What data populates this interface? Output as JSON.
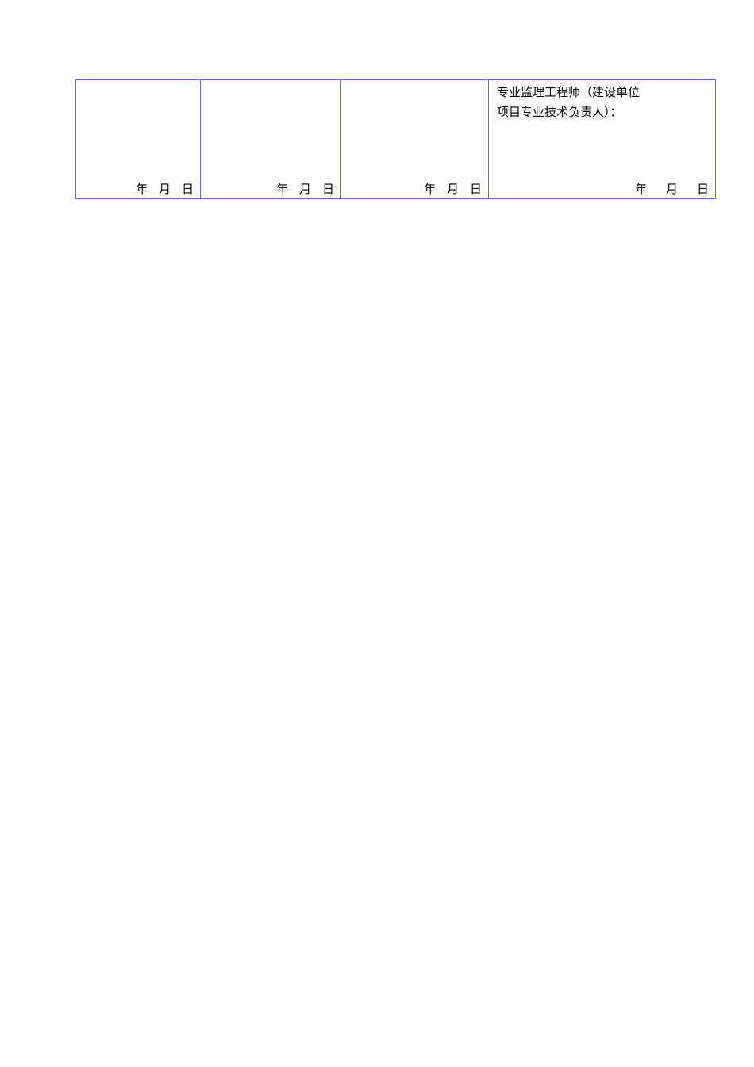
{
  "table": {
    "cells": [
      {
        "label": "",
        "date": {
          "year": "年",
          "month": "月",
          "day": "日"
        }
      },
      {
        "label": "",
        "date": {
          "year": "年",
          "month": "月",
          "day": "日"
        }
      },
      {
        "label": "",
        "date": {
          "year": "年",
          "month": "月",
          "day": "日"
        }
      },
      {
        "label_line1": "专业监理工程师（建设单位",
        "label_line2": "项目专业技术负责人）：",
        "date": {
          "year": "年",
          "month": "月",
          "day": "日"
        }
      }
    ],
    "border_color": "#6a6ae0"
  }
}
